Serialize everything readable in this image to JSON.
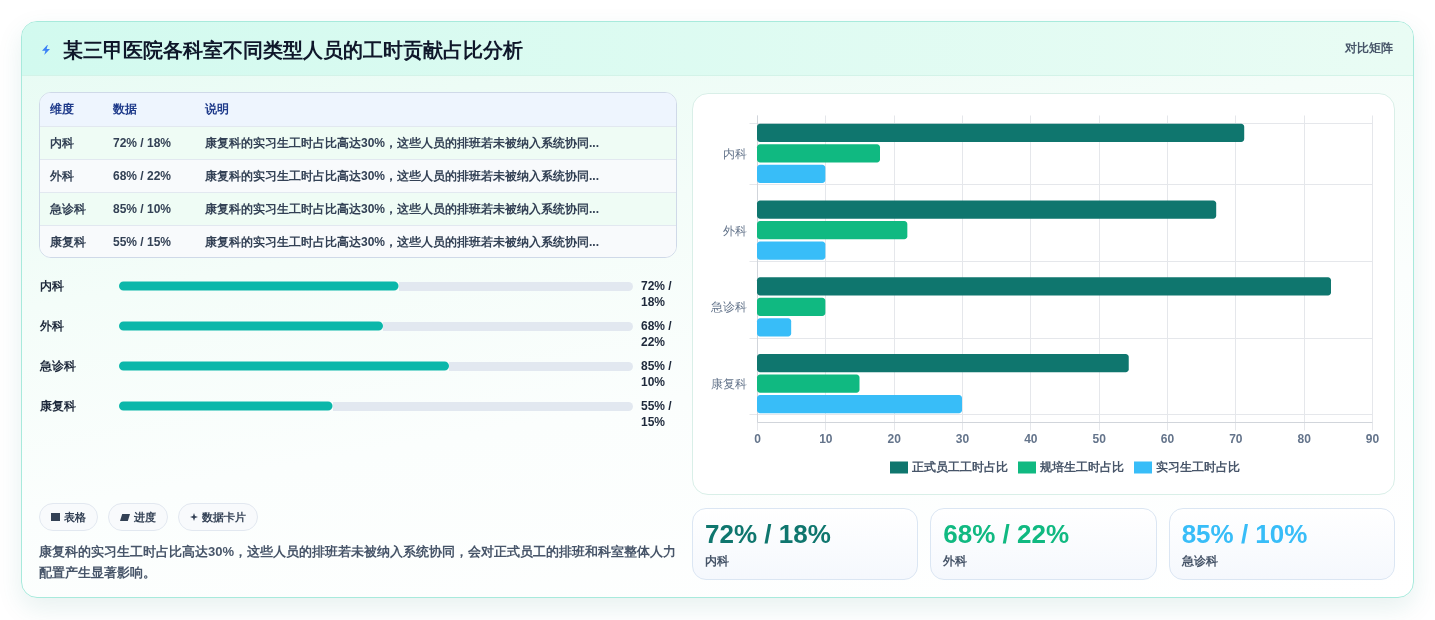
{
  "chart_data": [
    {
      "type": "other",
      "title": "某三甲医院各科室不同类型人员的工时贡献占比分析",
      "subtitle": "对比矩阵"
    },
    {
      "type": "other",
      "categories": [
        "内科",
        "外科",
        "急诊科",
        "康复科"
      ],
      "value_labels": [
        "72% / 18%",
        "68% / 22%",
        "85% / 10%",
        "55% / 15%"
      ],
      "annotations": [
        "维度",
        "数据",
        "说明",
        "康复科的实习生工时占比高达30%，这些人员的排班若未被纳入系统协同...",
        "康复科的实习生工时占比高达30%，这些人员的排班若未被纳入系统协同...",
        "康复科的实习生工时占比高达30%，这些人员的排班若未被纳入系统协同...",
        "康复科的实习生工时占比高达30%，这些人员的排班若未被纳入系统协同..."
      ]
    },
    {
      "type": "bar",
      "orientation": "horizontal",
      "categories": [
        "内科",
        "外科",
        "急诊科",
        "康复科"
      ],
      "values": [
        72,
        68,
        85,
        55
      ],
      "color": "#0bb7aa",
      "value_labels": [
        "72% / 18%",
        "68% / 22%",
        "85% / 10%",
        "55% / 15%"
      ],
      "tick_labels": "y"
    },
    {
      "type": "other",
      "annotations": [
        "表格",
        "进度",
        "数据卡片",
        "康复科的实习生工时占比高达30%，这些人员的排班若未被纳入系统协同，会对正式员工的排班和科室整体人力配置产生显著影响。"
      ]
    },
    {
      "type": "bar",
      "orientation": "horizontal",
      "categories": [
        "内科",
        "外科",
        "急诊科",
        "康复科"
      ],
      "series": [
        {
          "name": "正式员工工时占比",
          "color": "#0f766e",
          "values": [
            71.3,
            67.2,
            84,
            54.4
          ]
        },
        {
          "name": "规培生工时占比",
          "color": "#10b981",
          "values": [
            18,
            22,
            10,
            15
          ]
        },
        {
          "name": "实习生工时占比",
          "color": "#38bdf8",
          "values": [
            10,
            10,
            5,
            30
          ]
        }
      ],
      "xlim": [
        0,
        90
      ],
      "xticks": [
        0,
        10,
        20,
        30,
        40,
        50,
        60,
        70,
        80,
        90
      ],
      "grid": true,
      "legend": "bottom"
    },
    {
      "type": "other",
      "categories": [
        "内科",
        "外科",
        "急诊科"
      ],
      "value_labels": [
        "72% / 18%",
        "68% / 22%",
        "85% / 10%"
      ],
      "colors": [
        "#0f766e",
        "#10b981",
        "#38bdf8"
      ]
    }
  ]
}
